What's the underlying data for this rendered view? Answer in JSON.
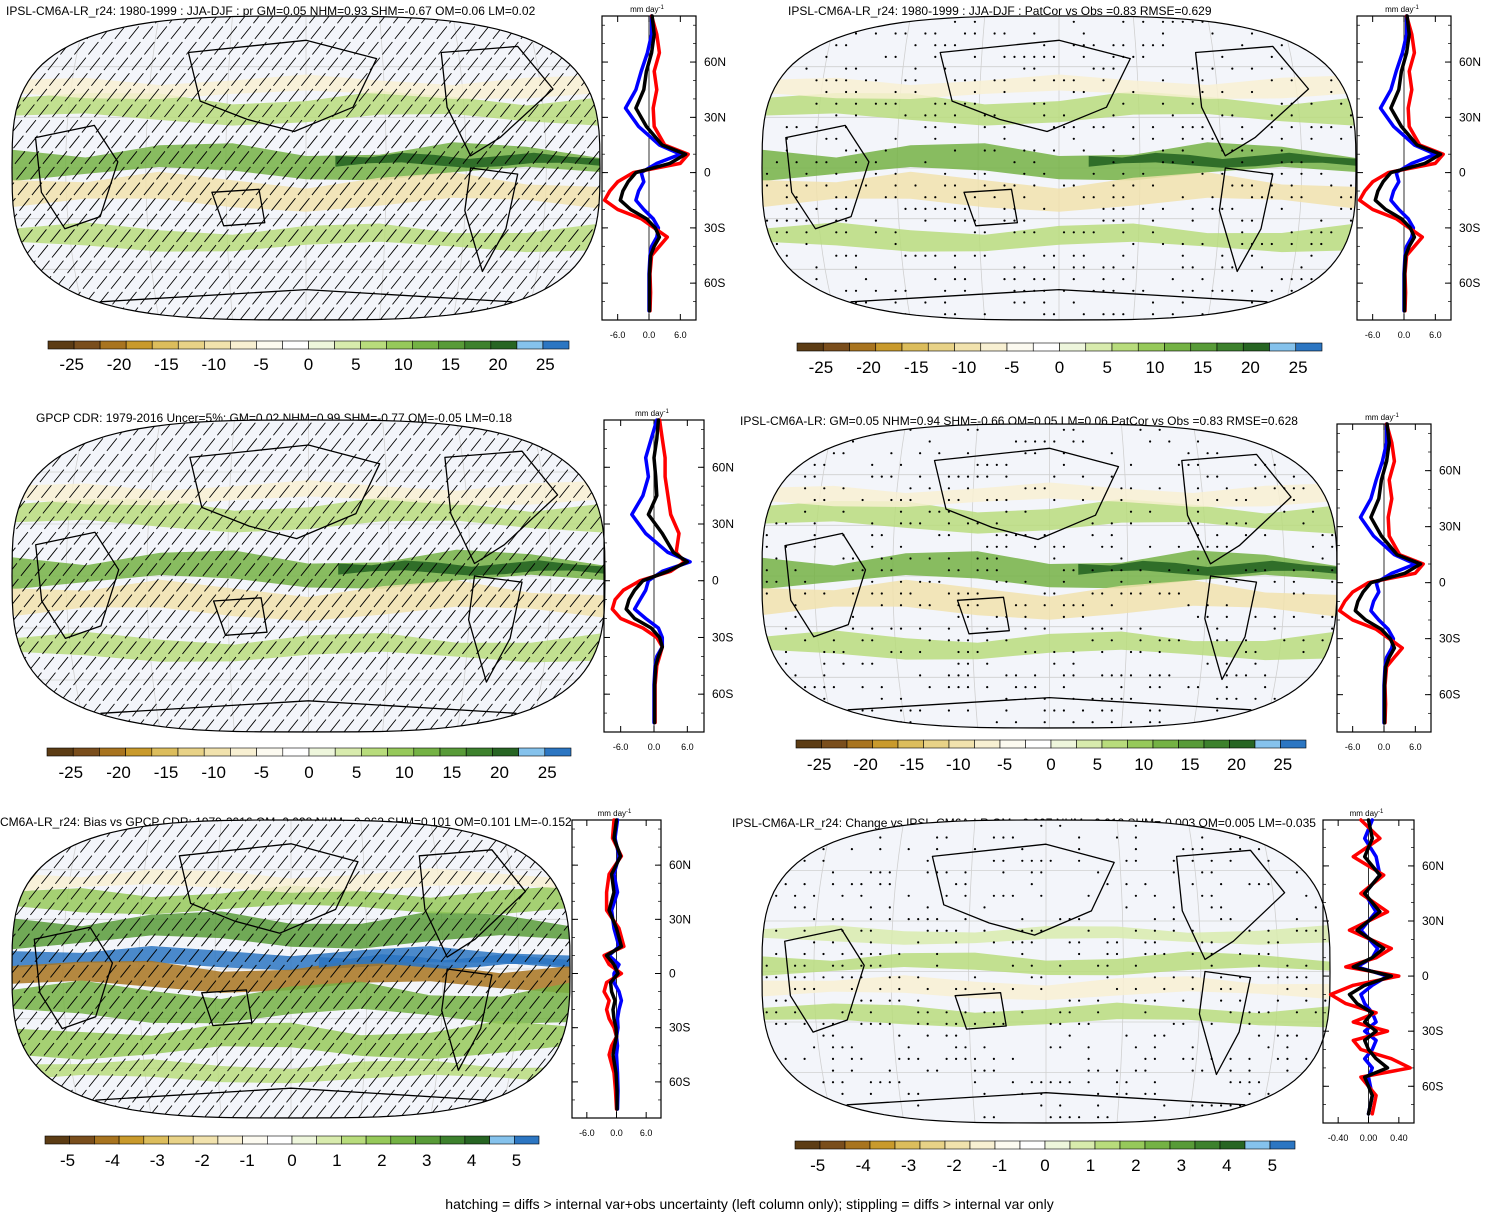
{
  "footer": "hatching = diffs > internal var+obs uncertainty (left column only); stippling = diffs > internal var only",
  "colors": {
    "scale": [
      "#5c3c14",
      "#7a4e1c",
      "#a8741f",
      "#c99a2c",
      "#dcbd5c",
      "#e8d287",
      "#f1e2ad",
      "#f8f0d2",
      "#fcfaf0",
      "#ffffff",
      "#eef6dc",
      "#d8ebad",
      "#b8dc7c",
      "#96c95a",
      "#74b244",
      "#589b38",
      "#3d812d",
      "#276523",
      "#85c2ec",
      "#2c76c2"
    ],
    "land_bg": "#f3f5fa",
    "obs_line": "#0000ff",
    "model_line": "#ff0000",
    "mean_line": "#000000"
  },
  "chart_data": [
    {
      "id": "model_jja_djf",
      "type": "heatmap",
      "title": "IPSL-CM6A-LR_r24: 1980-1999 : JJA-DJF : pr GM=0.05 NHM=0.93 SHM=-0.67 OM=0.06 LM=0.02",
      "colorbar_ticks": [
        "-25",
        "-20",
        "-15",
        "-10",
        "-5",
        "0",
        "5",
        "10",
        "15",
        "20",
        "25"
      ],
      "colorbar_range": [
        -27.5,
        27.5
      ],
      "overlay": "hatching",
      "profile": {
        "units": "mm day",
        "units_exp": "-1",
        "xticks": [
          "-6.0",
          "0.0",
          "6.0"
        ],
        "xrange": [
          -9,
          9
        ],
        "lat_ticks": [
          "60N",
          "30N",
          "0",
          "30S",
          "60S"
        ],
        "lat_values": [
          60,
          30,
          0,
          -30,
          -60
        ],
        "ylim": [
          -80,
          85
        ],
        "lat": [
          85,
          75,
          65,
          55,
          45,
          35,
          25,
          15,
          10,
          5,
          0,
          -5,
          -10,
          -15,
          -20,
          -25,
          -30,
          -35,
          -40,
          -45,
          -55,
          -65,
          -75
        ],
        "series": [
          {
            "color": "blue",
            "values": [
              0.5,
              0.5,
              -0.3,
              -1.5,
              -2.5,
              -4.5,
              -2.0,
              2.0,
              6.0,
              1.5,
              -1.5,
              -1.0,
              -2.0,
              -2.5,
              -1.0,
              0.8,
              1.8,
              1.5,
              0.5,
              0.2,
              0.0,
              0.0,
              0.0
            ]
          },
          {
            "color": "red",
            "values": [
              0.5,
              1.5,
              2.0,
              1.0,
              1.5,
              0.8,
              1.0,
              3.0,
              7.5,
              6.0,
              -3.0,
              -6.0,
              -7.5,
              -8.5,
              -6.0,
              -1.5,
              1.0,
              3.5,
              2.0,
              0.5,
              0.2,
              0.3,
              0.2
            ]
          },
          {
            "color": "black",
            "values": [
              0.6,
              1.0,
              0.5,
              -0.5,
              -1.0,
              -2.5,
              -0.5,
              2.5,
              7.0,
              4.0,
              -2.5,
              -4.0,
              -5.0,
              -5.5,
              -3.5,
              -0.5,
              1.2,
              2.0,
              1.0,
              0.3,
              0.1,
              0.1,
              0.1
            ]
          }
        ]
      }
    },
    {
      "id": "model_patcor",
      "type": "heatmap",
      "title": "IPSL-CM6A-LR_r24: 1980-1999 : JJA-DJF : PatCor vs Obs =0.83 RMSE=0.629",
      "colorbar_ticks": [
        "-25",
        "-20",
        "-15",
        "-10",
        "-5",
        "0",
        "5",
        "10",
        "15",
        "20",
        "25"
      ],
      "colorbar_range": [
        -27.5,
        27.5
      ],
      "overlay": "stippling",
      "profile": {
        "units": "mm day",
        "units_exp": "-1",
        "xticks": [
          "-6.0",
          "0.0",
          "6.0"
        ],
        "xrange": [
          -9,
          9
        ],
        "lat_ticks": [
          "60N",
          "30N",
          "0",
          "30S",
          "60S"
        ],
        "lat_values": [
          60,
          30,
          0,
          -30,
          -60
        ],
        "ylim": [
          -80,
          85
        ],
        "lat": [
          85,
          75,
          65,
          55,
          45,
          35,
          25,
          15,
          10,
          5,
          0,
          -5,
          -10,
          -15,
          -20,
          -25,
          -30,
          -35,
          -40,
          -45,
          -55,
          -65,
          -75
        ],
        "series": [
          {
            "color": "blue",
            "values": [
              0.5,
              0.5,
              -0.3,
              -1.5,
              -2.5,
              -4.5,
              -2.0,
              2.0,
              6.0,
              1.5,
              -1.5,
              -1.0,
              -2.0,
              -2.5,
              -1.0,
              0.8,
              1.8,
              1.5,
              0.5,
              0.2,
              0.0,
              0.0,
              0.0
            ]
          },
          {
            "color": "red",
            "values": [
              0.5,
              1.5,
              2.0,
              1.0,
              1.5,
              0.8,
              1.0,
              3.0,
              7.5,
              6.0,
              -3.0,
              -6.0,
              -7.5,
              -8.5,
              -6.0,
              -1.5,
              1.0,
              3.5,
              2.0,
              0.5,
              0.2,
              0.3,
              0.2
            ]
          },
          {
            "color": "black",
            "values": [
              0.6,
              1.0,
              0.5,
              -0.5,
              -1.0,
              -2.5,
              -0.5,
              2.5,
              7.0,
              4.0,
              -2.5,
              -4.0,
              -5.0,
              -5.5,
              -3.5,
              -0.5,
              1.2,
              2.0,
              1.0,
              0.3,
              0.1,
              0.1,
              0.1
            ]
          }
        ]
      }
    },
    {
      "id": "obs_gpcp",
      "type": "heatmap",
      "title": "GPCP CDR: 1979-2016 Uncer=5%: GM=0.02 NHM=0.99 SHM=-0.77 OM=-0.05 LM=0.18",
      "colorbar_ticks": [
        "-25",
        "-20",
        "-15",
        "-10",
        "-5",
        "0",
        "5",
        "10",
        "15",
        "20",
        "25"
      ],
      "colorbar_range": [
        -27.5,
        27.5
      ],
      "overlay": "hatching",
      "profile": {
        "units": "mm day",
        "units_exp": "-1",
        "xticks": [
          "-6.0",
          "0.0",
          "6.0"
        ],
        "xrange": [
          -9,
          9
        ],
        "lat_ticks": [
          "60N",
          "30N",
          "0",
          "30S",
          "60S"
        ],
        "lat_values": [
          60,
          30,
          0,
          -30,
          -60
        ],
        "ylim": [
          -80,
          85
        ],
        "lat": [
          85,
          75,
          65,
          55,
          45,
          35,
          25,
          15,
          10,
          5,
          0,
          -5,
          -10,
          -15,
          -20,
          -25,
          -30,
          -35,
          -40,
          -45,
          -55,
          -65,
          -75
        ],
        "series": [
          {
            "color": "blue",
            "values": [
              0.5,
              -0.5,
              -1.5,
              -1.0,
              -2.0,
              -4.0,
              -1.5,
              2.5,
              6.5,
              1.5,
              -1.0,
              -1.5,
              -2.5,
              -3.5,
              -1.5,
              0.8,
              1.5,
              1.5,
              0.5,
              0.2,
              0.0,
              0.0,
              0.0
            ]
          },
          {
            "color": "red",
            "values": [
              1.0,
              1.5,
              2.0,
              2.0,
              2.5,
              3.0,
              4.5,
              4.0,
              5.5,
              3.0,
              -2.5,
              -5.5,
              -7.0,
              -7.5,
              -6.0,
              -2.0,
              0.5,
              1.5,
              1.0,
              0.5,
              0.2,
              0.2,
              0.2
            ]
          },
          {
            "color": "black",
            "values": [
              0.8,
              0.5,
              0.0,
              0.3,
              0.5,
              -1.0,
              1.5,
              3.5,
              6.0,
              2.5,
              -2.0,
              -3.5,
              -4.5,
              -5.0,
              -3.5,
              -0.5,
              1.0,
              1.5,
              0.8,
              0.3,
              0.1,
              0.1,
              0.1
            ]
          }
        ]
      }
    },
    {
      "id": "ens_patcor",
      "type": "heatmap",
      "title": "IPSL-CM6A-LR: GM=0.05 NHM=0.94 SHM=-0.66 OM=0.05 LM=0.06 PatCor vs Obs =0.83 RMSE=0.628",
      "colorbar_ticks": [
        "-25",
        "-20",
        "-15",
        "-10",
        "-5",
        "0",
        "5",
        "10",
        "15",
        "20",
        "25"
      ],
      "colorbar_range": [
        -27.5,
        27.5
      ],
      "overlay": "stippling",
      "profile": {
        "units": "mm day",
        "units_exp": "-1",
        "xticks": [
          "-6.0",
          "0.0",
          "6.0"
        ],
        "xrange": [
          -9,
          9
        ],
        "lat_ticks": [
          "60N",
          "30N",
          "0",
          "30S",
          "60S"
        ],
        "lat_values": [
          60,
          30,
          0,
          -30,
          -60
        ],
        "ylim": [
          -80,
          85
        ],
        "lat": [
          85,
          75,
          65,
          55,
          45,
          35,
          25,
          15,
          10,
          5,
          0,
          -5,
          -10,
          -15,
          -20,
          -25,
          -30,
          -35,
          -40,
          -45,
          -55,
          -65,
          -75
        ],
        "series": [
          {
            "color": "blue",
            "values": [
              0.5,
              0.5,
              -0.3,
              -1.5,
              -2.5,
              -4.5,
              -2.0,
              2.0,
              6.0,
              1.5,
              -1.5,
              -1.0,
              -2.0,
              -2.5,
              -1.0,
              0.8,
              1.8,
              1.5,
              0.5,
              0.2,
              0.0,
              0.0,
              0.0
            ]
          },
          {
            "color": "red",
            "values": [
              0.5,
              1.5,
              2.0,
              1.0,
              1.5,
              0.8,
              1.0,
              3.0,
              7.5,
              6.0,
              -3.0,
              -6.0,
              -7.5,
              -8.5,
              -6.0,
              -1.5,
              1.0,
              3.5,
              2.0,
              0.5,
              0.2,
              0.3,
              0.2
            ]
          },
          {
            "color": "black",
            "values": [
              0.6,
              1.0,
              0.5,
              -0.5,
              -1.0,
              -2.5,
              -0.5,
              2.5,
              7.0,
              4.0,
              -2.5,
              -4.0,
              -5.0,
              -5.5,
              -3.5,
              -0.5,
              1.2,
              2.0,
              1.0,
              0.3,
              0.1,
              0.1,
              0.1
            ]
          }
        ]
      }
    },
    {
      "id": "bias",
      "type": "heatmap",
      "title": "CM6A-LR_r24: Bias vs GPCP CDR: 1979-2016 GM=0.028 NHM=-0.062 SHM=0.101 OM=0.101 LM=-0.152",
      "colorbar_ticks": [
        "-5",
        "-4",
        "-3",
        "-2",
        "-1",
        "0",
        "1",
        "2",
        "3",
        "4",
        "5"
      ],
      "colorbar_range": [
        -5.5,
        5.5
      ],
      "overlay": "hatching",
      "profile": {
        "units": "mm day",
        "units_exp": "-1",
        "xticks": [
          "-6.0",
          "0.0",
          "6.0"
        ],
        "xrange": [
          -9,
          9
        ],
        "lat_ticks": [
          "60N",
          "30N",
          "0",
          "30S",
          "60S"
        ],
        "lat_values": [
          60,
          30,
          0,
          -30,
          -60
        ],
        "ylim": [
          -80,
          85
        ],
        "lat": [
          85,
          75,
          65,
          55,
          45,
          35,
          25,
          15,
          10,
          5,
          0,
          -5,
          -10,
          -15,
          -20,
          -25,
          -30,
          -35,
          -40,
          -45,
          -55,
          -65,
          -75
        ],
        "series": [
          {
            "color": "blue",
            "values": [
              0.2,
              -0.3,
              0.5,
              -0.5,
              0.2,
              -1.0,
              -0.5,
              0.5,
              -1.5,
              0.5,
              -0.5,
              -0.5,
              0.5,
              1.0,
              0.5,
              0.2,
              0.3,
              0.0,
              0.2,
              0.0,
              0.2,
              0.3,
              0.2
            ]
          },
          {
            "color": "red",
            "values": [
              -0.5,
              -0.8,
              1.0,
              -1.5,
              -2.0,
              -2.0,
              0.5,
              1.5,
              -2.5,
              -1.5,
              1.0,
              -2.0,
              -2.5,
              -1.5,
              -2.0,
              -1.5,
              -0.5,
              0.0,
              -1.0,
              -1.5,
              -0.5,
              -0.2,
              0.0
            ]
          },
          {
            "color": "black",
            "values": [
              0.0,
              -0.5,
              0.8,
              -1.0,
              -0.5,
              -1.5,
              0.0,
              1.0,
              -2.0,
              -0.5,
              0.3,
              -1.2,
              -1.0,
              -0.3,
              -0.7,
              -0.5,
              -0.1,
              0.0,
              -0.4,
              -0.7,
              -0.1,
              0.1,
              0.1
            ]
          }
        ]
      }
    },
    {
      "id": "change",
      "type": "heatmap",
      "title": "IPSL-CM6A-LR_r24: Change vs IPSL-CM6A-LR GM=-0.007 NHM=-0.012 SHM=-0.003 OM=0.005 LM=-0.035",
      "colorbar_ticks": [
        "-5",
        "-4",
        "-3",
        "-2",
        "-1",
        "0",
        "1",
        "2",
        "3",
        "4",
        "5"
      ],
      "colorbar_range": [
        -5.5,
        5.5
      ],
      "overlay": "stippling",
      "profile": {
        "units": "mm day",
        "units_exp": "-1",
        "xticks": [
          "-0.40",
          "0.00",
          "0.40"
        ],
        "xrange": [
          -0.6,
          0.6
        ],
        "lat_ticks": [
          "60N",
          "30N",
          "0",
          "30S",
          "60S"
        ],
        "lat_values": [
          60,
          30,
          0,
          -30,
          -60
        ],
        "ylim": [
          -80,
          85
        ],
        "lat": [
          85,
          75,
          65,
          55,
          45,
          35,
          25,
          15,
          10,
          5,
          0,
          -5,
          -10,
          -15,
          -20,
          -25,
          -30,
          -35,
          -40,
          -45,
          -50,
          -55,
          -65,
          -75
        ],
        "series": [
          {
            "color": "blue",
            "values": [
              0.05,
              -0.05,
              0.1,
              0.15,
              -0.05,
              0.1,
              -0.1,
              0.12,
              0.05,
              -0.15,
              0.25,
              0.05,
              -0.1,
              -0.05,
              0.05,
              0.1,
              -0.05,
              0.1,
              0.05,
              -0.05,
              0.05,
              0.0,
              0.05,
              0.0
            ]
          },
          {
            "color": "red",
            "values": [
              -0.1,
              0.15,
              -0.2,
              0.2,
              -0.1,
              0.25,
              -0.25,
              0.3,
              0.1,
              -0.3,
              0.4,
              -0.2,
              -0.5,
              -0.3,
              0.1,
              -0.2,
              0.25,
              -0.2,
              -0.1,
              0.3,
              0.55,
              -0.1,
              0.1,
              0.05
            ]
          },
          {
            "color": "black",
            "values": [
              0.0,
              0.05,
              -0.05,
              0.15,
              -0.05,
              0.15,
              -0.15,
              0.2,
              0.05,
              -0.2,
              0.3,
              -0.05,
              -0.25,
              -0.15,
              0.05,
              -0.05,
              0.1,
              -0.05,
              0.0,
              0.1,
              0.25,
              -0.05,
              0.05,
              0.0
            ]
          }
        ]
      }
    }
  ]
}
